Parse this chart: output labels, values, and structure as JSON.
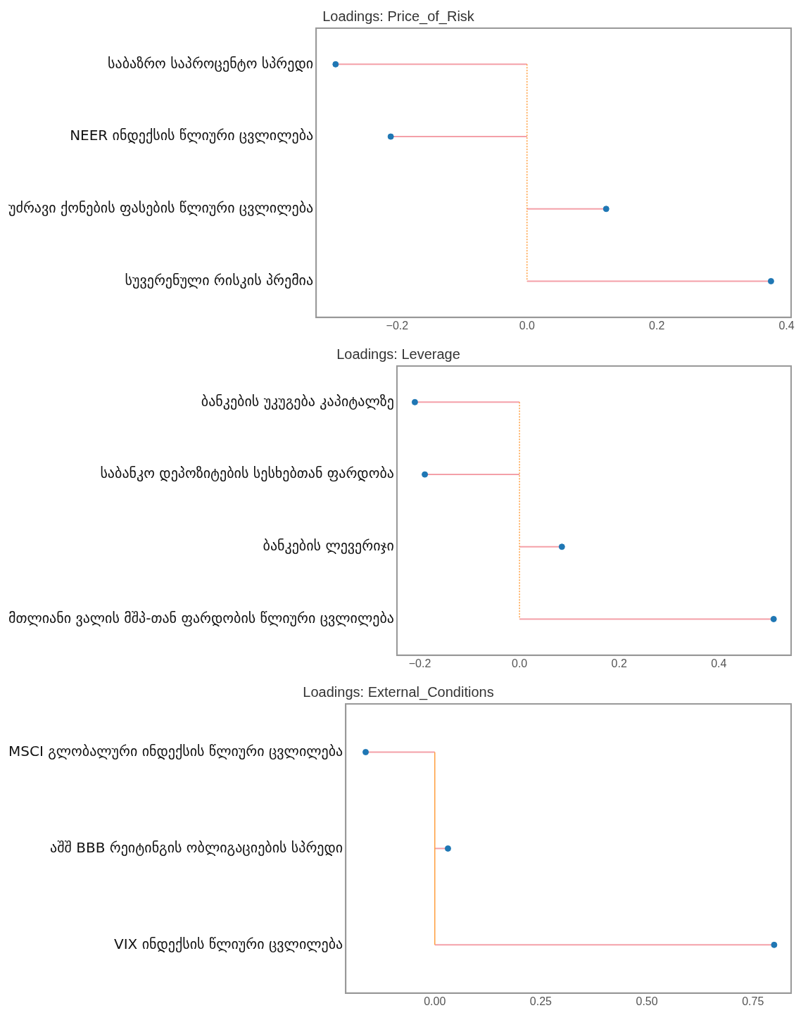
{
  "chart_data": [
    {
      "type": "lollipop",
      "orientation": "horizontal",
      "title": "Loadings: Price_of_Risk",
      "categories": [
        "საბაზრო საპროცენტო სპრედი",
        "NEER ინდექსის წლიური ცვლილება",
        "უძრავი ქონების ფასების წლიური ცვლილება",
        "სუვერენული რისკის პრემია"
      ],
      "series": [
        {
          "color": "#1f77b4",
          "values": [
            -0.295,
            -0.21,
            0.122,
            0.376
          ]
        }
      ],
      "xlim": [
        -0.325,
        0.407
      ],
      "xticks": [
        {
          "value": -0.2,
          "label": "−0.2"
        },
        {
          "value": 0,
          "label": "0.0"
        },
        {
          "value": 0.2,
          "label": "0.2"
        },
        {
          "value": 0.4,
          "label": "0.4"
        }
      ],
      "ref_lines": [
        {
          "axis": "x",
          "value": 0,
          "color": "#ff9f40",
          "line_style": "dotted"
        }
      ],
      "grid": false,
      "marker": "circle"
    },
    {
      "type": "lollipop",
      "orientation": "horizontal",
      "title": "Loadings: Leverage",
      "categories": [
        "ბანკების უკუგება კაპიტალზე",
        "საბანკო დეპოზიტების სესხებთან ფარდობა",
        "ბანკების ლევერიჯი",
        "მთლიანი ვალის მშპ-თან ფარდობის წლიური ცვლილება"
      ],
      "series": [
        {
          "color": "#1f77b4",
          "values": [
            -0.21,
            -0.19,
            0.085,
            0.51
          ]
        }
      ],
      "xlim": [
        -0.246,
        0.545
      ],
      "xticks": [
        {
          "value": -0.2,
          "label": "−0.2"
        },
        {
          "value": 0,
          "label": "0.0"
        },
        {
          "value": 0.2,
          "label": "0.2"
        },
        {
          "value": 0.4,
          "label": "0.4"
        }
      ],
      "ref_lines": [
        {
          "axis": "x",
          "value": 0,
          "color": "#ff9f40",
          "line_style": "dotted"
        }
      ],
      "grid": false,
      "marker": "circle"
    },
    {
      "type": "lollipop",
      "orientation": "horizontal",
      "title": "Loadings: External_Conditions",
      "categories": [
        "MSCI გლობალური ინდექსის წლიური ცვლილება",
        "აშშ BBB რეიტინგის ობლიგაციების სპრედი",
        "VIX ინდექსის წლიური ცვლილება"
      ],
      "series": [
        {
          "color": "#1f77b4",
          "values": [
            -0.163,
            0.031,
            0.8
          ]
        }
      ],
      "xlim": [
        -0.21,
        0.84
      ],
      "xticks": [
        {
          "value": 0,
          "label": "0.00"
        },
        {
          "value": 0.25,
          "label": "0.25"
        },
        {
          "value": 0.5,
          "label": "0.50"
        },
        {
          "value": 0.75,
          "label": "0.75"
        }
      ],
      "ref_lines": [
        {
          "axis": "x",
          "value": 0,
          "color": "#ff9f40",
          "line_style": "solid"
        }
      ],
      "grid": false,
      "marker": "circle"
    }
  ]
}
